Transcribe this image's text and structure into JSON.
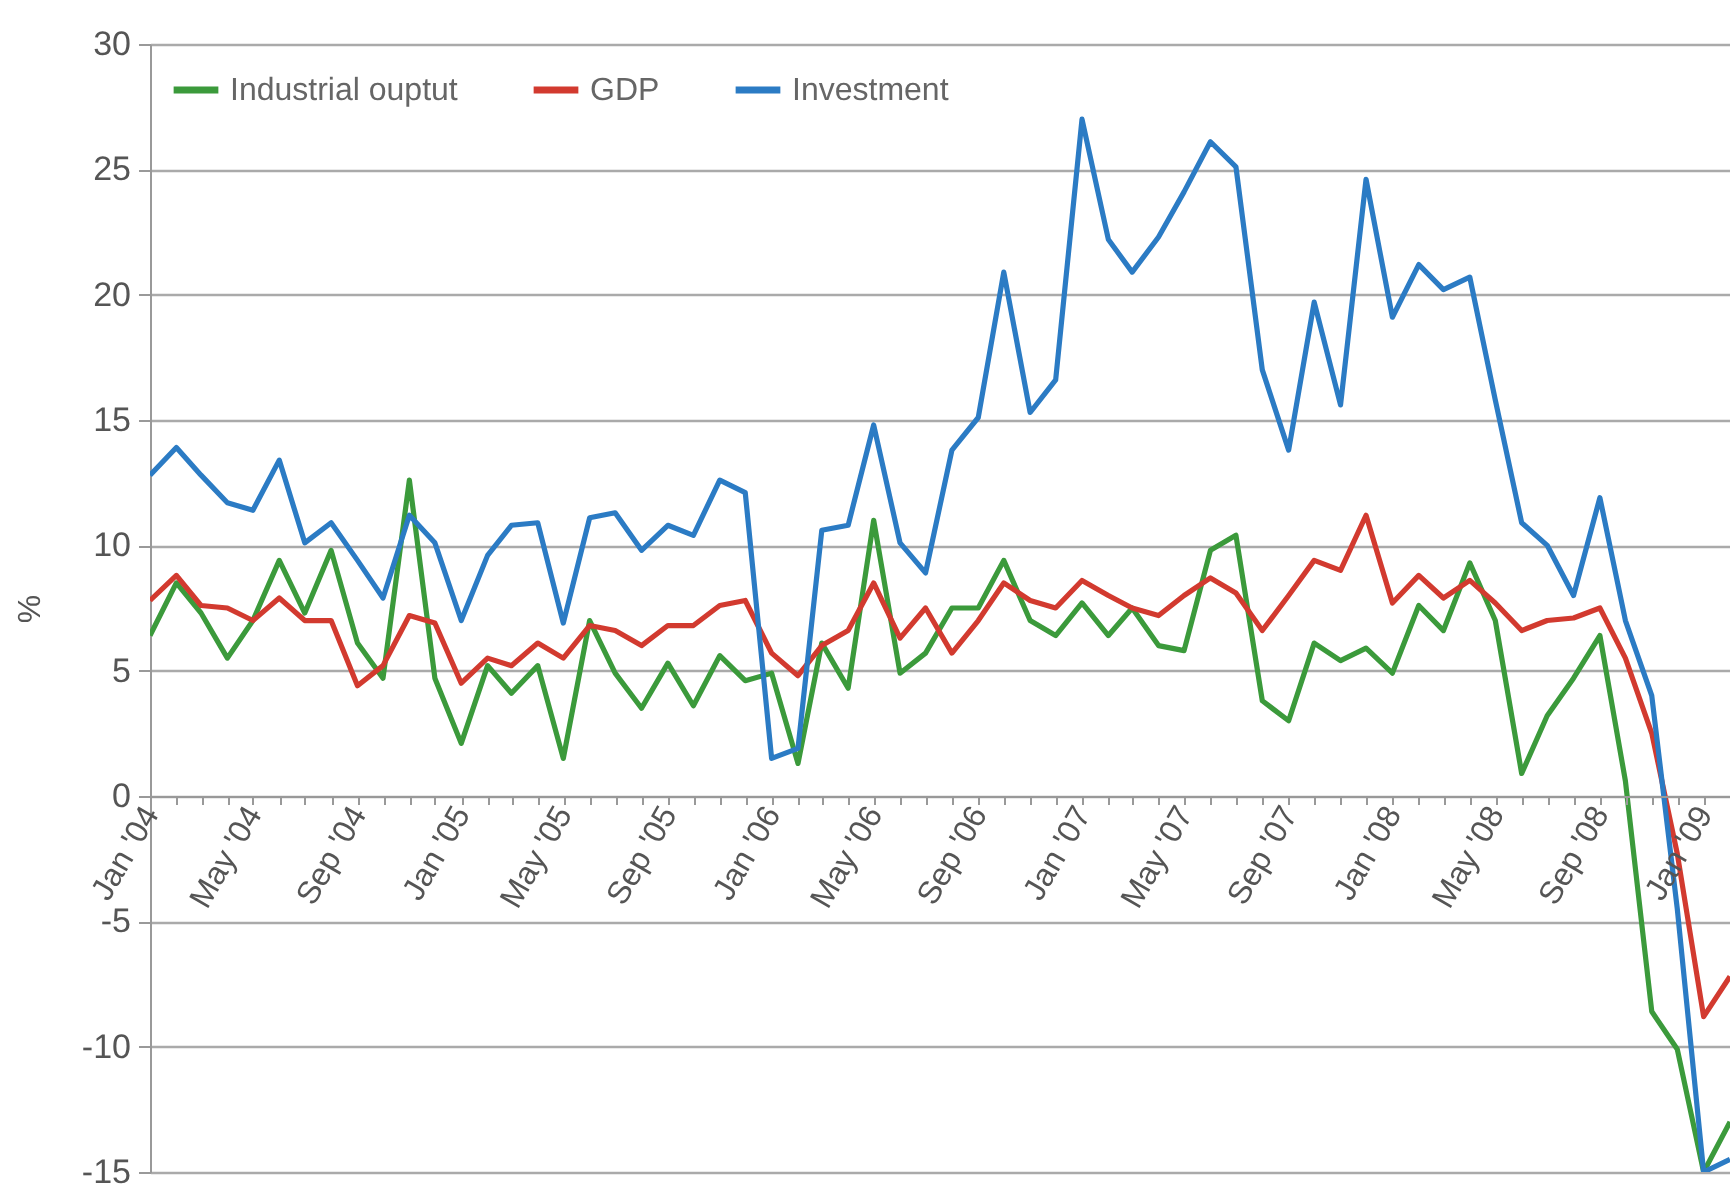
{
  "chart_data": {
    "type": "line",
    "ylabel": "%",
    "x": [
      "2004-01",
      "2004-02",
      "2004-03",
      "2004-04",
      "2004-05",
      "2004-06",
      "2004-07",
      "2004-08",
      "2004-09",
      "2004-10",
      "2004-11",
      "2004-12",
      "2005-01",
      "2005-02",
      "2005-03",
      "2005-04",
      "2005-05",
      "2005-06",
      "2005-07",
      "2005-08",
      "2005-09",
      "2005-10",
      "2005-11",
      "2005-12",
      "2006-01",
      "2006-02",
      "2006-03",
      "2006-04",
      "2006-05",
      "2006-06",
      "2006-07",
      "2006-08",
      "2006-09",
      "2006-10",
      "2006-11",
      "2006-12",
      "2007-01",
      "2007-02",
      "2007-03",
      "2007-04",
      "2007-05",
      "2007-06",
      "2007-07",
      "2007-08",
      "2007-09",
      "2007-10",
      "2007-11",
      "2007-12",
      "2008-01",
      "2008-02",
      "2008-03",
      "2008-04",
      "2008-05",
      "2008-06",
      "2008-07",
      "2008-08",
      "2008-09",
      "2008-10",
      "2008-11",
      "2008-12",
      "2009-01",
      "2009-02"
    ],
    "series": [
      {
        "name": "Industrial ouptut",
        "color": "#3b9a3b",
        "values": [
          6.4,
          8.5,
          7.3,
          5.5,
          7.0,
          9.4,
          7.3,
          9.8,
          6.1,
          4.7,
          12.6,
          4.7,
          2.1,
          5.2,
          4.1,
          5.2,
          1.5,
          7.0,
          4.9,
          3.5,
          5.3,
          3.6,
          5.6,
          4.6,
          4.9,
          1.3,
          6.1,
          4.3,
          11.0,
          4.9,
          5.7,
          7.5,
          7.5,
          9.4,
          7.0,
          6.4,
          7.7,
          6.4,
          7.5,
          6.0,
          5.8,
          9.8,
          10.4,
          3.8,
          3.0,
          6.1,
          5.4,
          5.9,
          4.9,
          7.6,
          6.6,
          9.3,
          7.0,
          0.9,
          3.2,
          4.7,
          6.4,
          0.6,
          -8.6,
          -10.1,
          -15.0,
          -13.0
        ]
      },
      {
        "name": "GDP",
        "color": "#d23a2f",
        "values": [
          7.8,
          8.8,
          7.6,
          7.5,
          7.0,
          7.9,
          7.0,
          7.0,
          4.4,
          5.2,
          7.2,
          6.9,
          4.5,
          5.5,
          5.2,
          6.1,
          5.5,
          6.8,
          6.6,
          6.0,
          6.8,
          6.8,
          7.6,
          7.8,
          5.7,
          4.8,
          6.0,
          6.6,
          8.5,
          6.3,
          7.5,
          5.7,
          7.0,
          8.5,
          7.8,
          7.5,
          8.6,
          8.0,
          7.5,
          7.2,
          8.0,
          8.7,
          8.1,
          6.6,
          8.0,
          9.4,
          9.0,
          11.2,
          7.7,
          8.8,
          7.9,
          8.6,
          7.7,
          6.6,
          7.0,
          7.1,
          7.5,
          5.5,
          2.5,
          -2.3,
          -8.8,
          -7.2
        ]
      },
      {
        "name": "Investment",
        "color": "#2b7bc4",
        "values": [
          12.8,
          13.9,
          12.8,
          11.7,
          11.4,
          13.4,
          10.1,
          10.9,
          9.4,
          7.9,
          11.2,
          10.1,
          7.0,
          9.6,
          10.8,
          10.9,
          6.9,
          11.1,
          11.3,
          9.8,
          10.8,
          10.4,
          12.6,
          12.1,
          1.5,
          1.9,
          10.6,
          10.8,
          14.8,
          10.1,
          8.9,
          13.8,
          15.1,
          20.9,
          15.3,
          16.6,
          27.0,
          22.2,
          20.9,
          22.3,
          24.1,
          26.1,
          25.1,
          17.0,
          13.8,
          19.7,
          15.6,
          24.6,
          19.1,
          21.2,
          20.2,
          20.7,
          15.8,
          10.9,
          10.0,
          8.0,
          11.9,
          7.0,
          4.0,
          -4.5,
          -15.0,
          -14.5
        ]
      }
    ],
    "ylim": [
      -15,
      30
    ],
    "yticks": [
      -15,
      -10,
      -5,
      0,
      5,
      10,
      15,
      20,
      25,
      30
    ],
    "xlim": [
      "2004-01",
      "2009-02"
    ],
    "xticks": [
      {
        "value": "2004-01",
        "label": "Jan '04"
      },
      {
        "value": "2004-02",
        "label": null
      },
      {
        "value": "2004-03",
        "label": null
      },
      {
        "value": "2004-04",
        "label": null
      },
      {
        "value": "2004-05",
        "label": "May '04"
      },
      {
        "value": "2004-06",
        "label": null
      },
      {
        "value": "2004-07",
        "label": null
      },
      {
        "value": "2004-08",
        "label": null
      },
      {
        "value": "2004-09",
        "label": "Sep '04"
      },
      {
        "value": "2004-10",
        "label": null
      },
      {
        "value": "2004-11",
        "label": null
      },
      {
        "value": "2004-12",
        "label": null
      },
      {
        "value": "2005-01",
        "label": "Jan '05"
      },
      {
        "value": "2005-02",
        "label": null
      },
      {
        "value": "2005-03",
        "label": null
      },
      {
        "value": "2005-04",
        "label": null
      },
      {
        "value": "2005-05",
        "label": "May '05"
      },
      {
        "value": "2005-06",
        "label": null
      },
      {
        "value": "2005-07",
        "label": null
      },
      {
        "value": "2005-08",
        "label": null
      },
      {
        "value": "2005-09",
        "label": "Sep '05"
      },
      {
        "value": "2005-10",
        "label": null
      },
      {
        "value": "2005-11",
        "label": null
      },
      {
        "value": "2005-12",
        "label": null
      },
      {
        "value": "2006-01",
        "label": "Jan '06"
      },
      {
        "value": "2006-02",
        "label": null
      },
      {
        "value": "2006-03",
        "label": null
      },
      {
        "value": "2006-04",
        "label": null
      },
      {
        "value": "2006-05",
        "label": "May '06"
      },
      {
        "value": "2006-06",
        "label": null
      },
      {
        "value": "2006-07",
        "label": null
      },
      {
        "value": "2006-08",
        "label": null
      },
      {
        "value": "2006-09",
        "label": "Sep '06"
      },
      {
        "value": "2006-10",
        "label": null
      },
      {
        "value": "2006-11",
        "label": null
      },
      {
        "value": "2006-12",
        "label": null
      },
      {
        "value": "2007-01",
        "label": "Jan '07"
      },
      {
        "value": "2007-02",
        "label": null
      },
      {
        "value": "2007-03",
        "label": null
      },
      {
        "value": "2007-04",
        "label": null
      },
      {
        "value": "2007-05",
        "label": "May '07"
      },
      {
        "value": "2007-06",
        "label": null
      },
      {
        "value": "2007-07",
        "label": null
      },
      {
        "value": "2007-08",
        "label": null
      },
      {
        "value": "2007-09",
        "label": "Sep '07"
      },
      {
        "value": "2007-10",
        "label": null
      },
      {
        "value": "2007-11",
        "label": null
      },
      {
        "value": "2007-12",
        "label": null
      },
      {
        "value": "2008-01",
        "label": "Jan '08"
      },
      {
        "value": "2008-02",
        "label": null
      },
      {
        "value": "2008-03",
        "label": null
      },
      {
        "value": "2008-04",
        "label": null
      },
      {
        "value": "2008-05",
        "label": "May '08"
      },
      {
        "value": "2008-06",
        "label": null
      },
      {
        "value": "2008-07",
        "label": null
      },
      {
        "value": "2008-08",
        "label": null
      },
      {
        "value": "2008-09",
        "label": "Sep '08"
      },
      {
        "value": "2008-10",
        "label": null
      },
      {
        "value": "2008-11",
        "label": null
      },
      {
        "value": "2008-12",
        "label": null
      },
      {
        "value": "2009-01",
        "label": "Jan '09"
      },
      {
        "value": "2009-02",
        "label": null
      }
    ],
    "grid": "y",
    "legend": "top left",
    "line_style": "solid"
  }
}
